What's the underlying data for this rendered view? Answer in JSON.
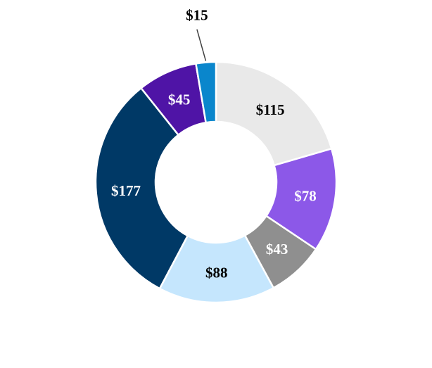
{
  "chart_data": {
    "type": "pie",
    "donut": true,
    "legend": "none",
    "slices": [
      {
        "value": 115,
        "label": "$115",
        "color": "#e9e9e9",
        "label_color": "#000000"
      },
      {
        "value": 78,
        "label": "$78",
        "color": "#8c58e8",
        "label_color": "#ffffff"
      },
      {
        "value": 43,
        "label": "$43",
        "color": "#8f8f8f",
        "label_color": "#ffffff"
      },
      {
        "value": 88,
        "label": "$88",
        "color": "#c5e6fd",
        "label_color": "#000000"
      },
      {
        "value": 177,
        "label": "$177",
        "color": "#003966",
        "label_color": "#ffffff"
      },
      {
        "value": 45,
        "label": "$45",
        "color": "#4f14a6",
        "label_color": "#ffffff"
      },
      {
        "value": 15,
        "label": "$15",
        "color": "#0a86cc",
        "label_color": "#000000",
        "label_outside": true
      }
    ]
  }
}
